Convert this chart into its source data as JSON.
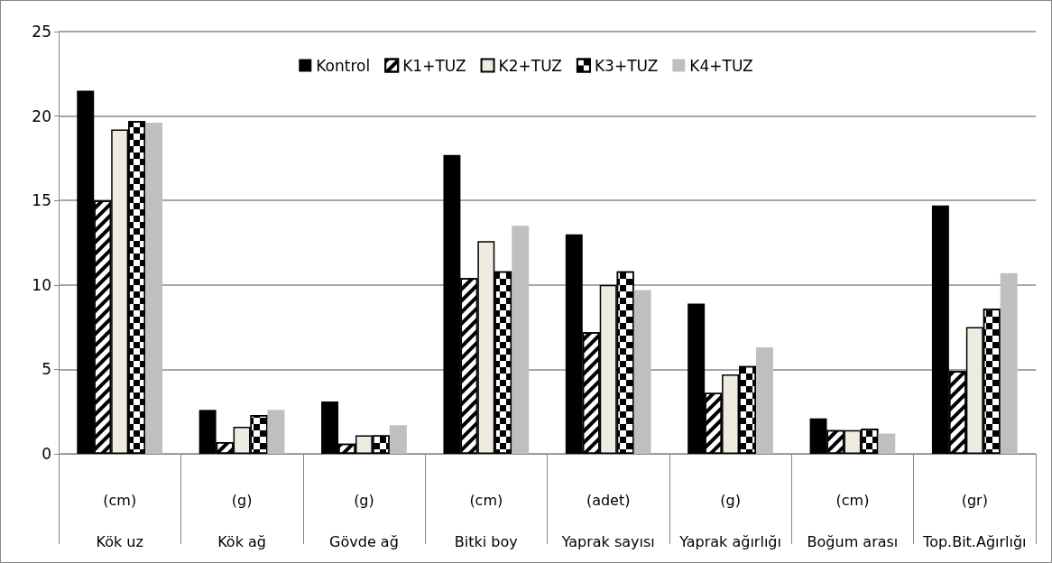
{
  "chart_data": {
    "type": "bar",
    "categories": [
      "(cm)\nKök uz",
      "(g)\nKök ağ",
      "(g)\nGövde ağ",
      "(cm)\nBitki boy",
      "(adet)\nYaprak sayısı",
      "(g)\nYaprak ağırlığı",
      "(cm)\nBoğum arası",
      "(gr)\nTop.Bit.Ağırlığı"
    ],
    "series": [
      {
        "name": "Kontrol",
        "color": "#000000",
        "values": [
          21.5,
          2.6,
          3.1,
          17.7,
          13.0,
          8.9,
          2.1,
          14.7
        ]
      },
      {
        "name": "K1+TUZ",
        "color": "#ffffff",
        "values": [
          15.0,
          0.7,
          0.6,
          10.4,
          7.2,
          3.6,
          1.4,
          4.9
        ]
      },
      {
        "name": "K2+TUZ",
        "color": "#eeece1",
        "values": [
          19.2,
          1.6,
          1.1,
          12.6,
          10.0,
          4.7,
          1.4,
          7.5
        ]
      },
      {
        "name": "K3+TUZ",
        "color": "#ffffff",
        "values": [
          19.7,
          2.3,
          1.1,
          10.8,
          10.8,
          5.2,
          1.5,
          8.6
        ]
      },
      {
        "name": "K4+TUZ",
        "color": "#bfbfbf",
        "values": [
          19.6,
          2.6,
          1.7,
          13.5,
          9.7,
          6.3,
          1.2,
          10.7
        ]
      }
    ],
    "ylim": [
      0,
      25
    ],
    "yticks": [
      0,
      5,
      10,
      15,
      20,
      25
    ],
    "grid": "y",
    "legend": "top"
  }
}
